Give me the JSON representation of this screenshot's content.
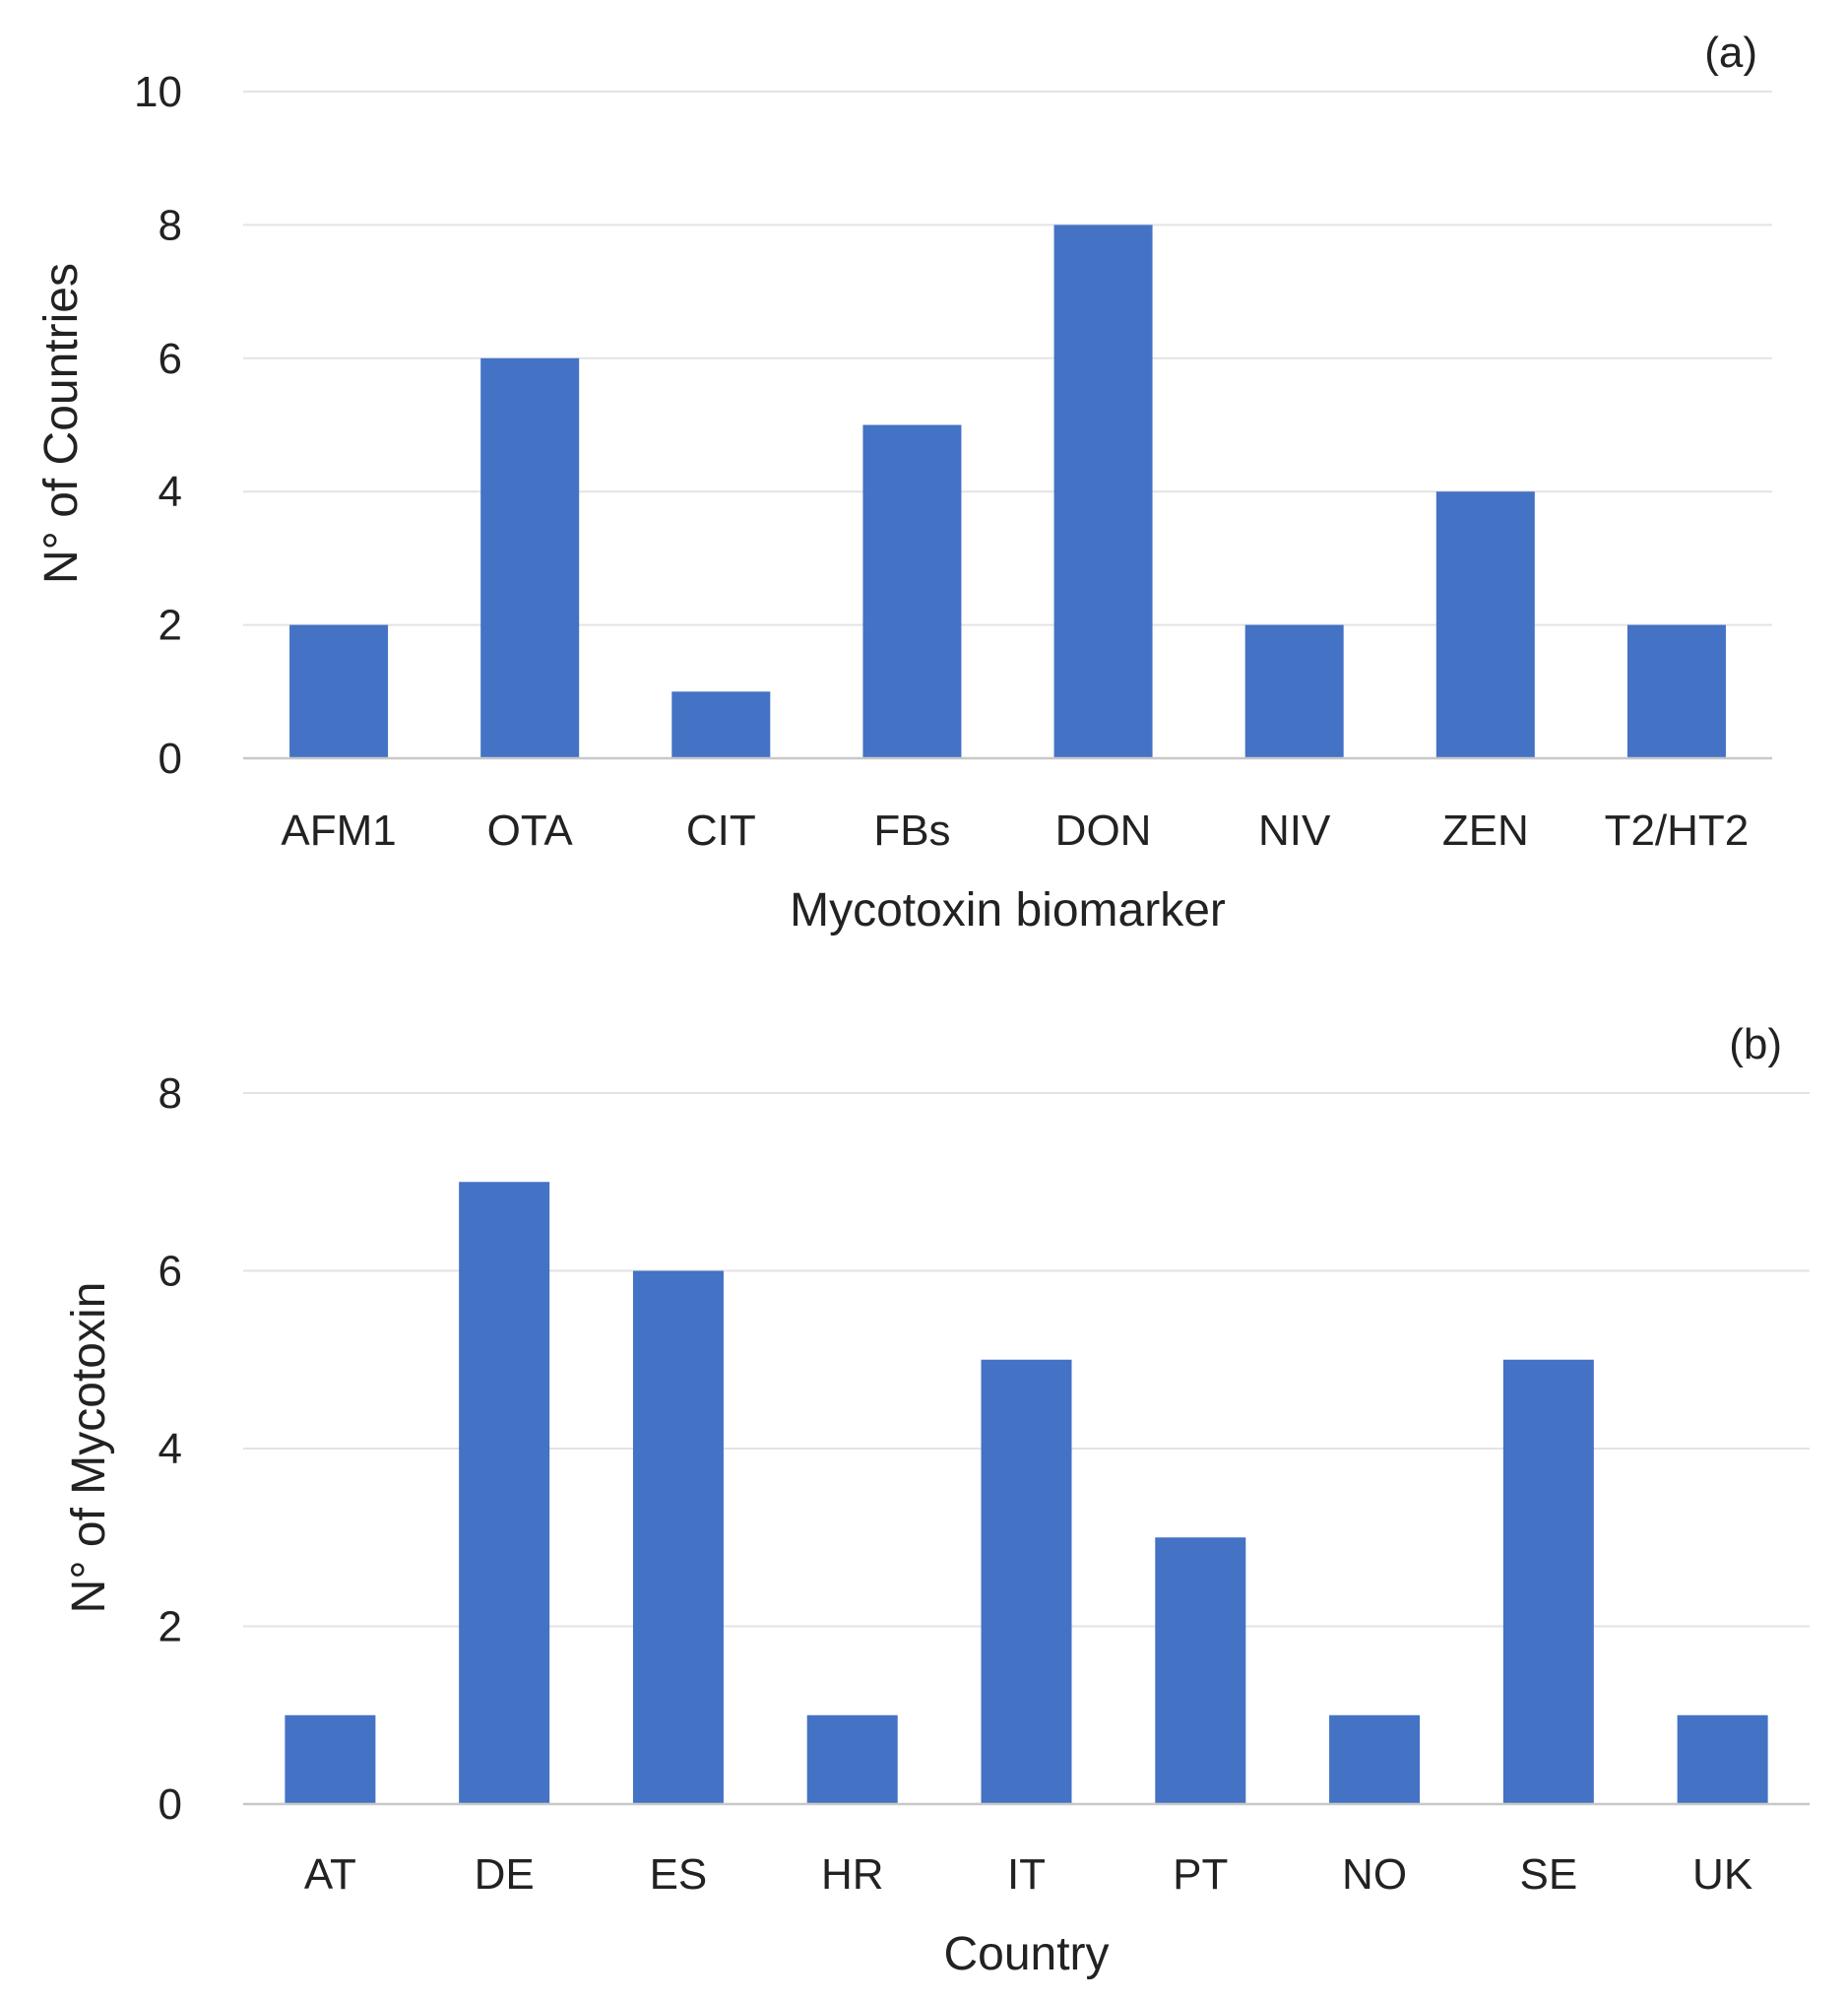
{
  "chart_data": [
    {
      "type": "bar",
      "panel_label": "(a)",
      "categories": [
        "AFM1",
        "OTA",
        "CIT",
        "FBs",
        "DON",
        "NIV",
        "ZEN",
        "T2/HT2"
      ],
      "values": [
        2,
        6,
        1,
        5,
        8,
        2,
        4,
        2
      ],
      "xlabel": "Mycotoxin biomarker",
      "ylabel": "N° of Countries",
      "ylim": [
        0,
        10
      ],
      "yticks": [
        0,
        2,
        4,
        6,
        8,
        10
      ],
      "grid": true,
      "legend": "none",
      "bar_color": "#4472C4"
    },
    {
      "type": "bar",
      "panel_label": "(b)",
      "categories": [
        "AT",
        "DE",
        "ES",
        "HR",
        "IT",
        "PT",
        "NO",
        "SE",
        "UK"
      ],
      "values": [
        1,
        7,
        6,
        1,
        5,
        3,
        1,
        5,
        1
      ],
      "xlabel": "Country",
      "ylabel": "N° of Mycotoxin",
      "ylim": [
        0,
        8
      ],
      "yticks": [
        0,
        2,
        4,
        6,
        8
      ],
      "grid": true,
      "legend": "none",
      "bar_color": "#4472C4"
    }
  ]
}
